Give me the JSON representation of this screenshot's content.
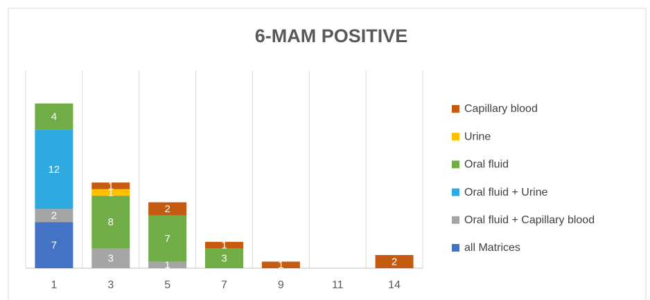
{
  "chart_data": {
    "type": "stacked_bar",
    "title": "6-MAM POSITIVE",
    "categories": [
      "1",
      "3",
      "5",
      "7",
      "9",
      "11",
      "14"
    ],
    "series": [
      {
        "name": "all Matrices",
        "color": "#4472c4",
        "values": [
          7,
          null,
          null,
          null,
          null,
          null,
          null
        ]
      },
      {
        "name": "Oral fluid + Capillary blood",
        "color": "#a5a5a5",
        "values": [
          2,
          3,
          1,
          null,
          null,
          null,
          null
        ]
      },
      {
        "name": "Oral fluid + Urine",
        "color": "#2eaae1",
        "values": [
          12,
          null,
          null,
          null,
          null,
          null,
          null
        ]
      },
      {
        "name": "Oral fluid",
        "color": "#70ad47",
        "values": [
          4,
          8,
          7,
          3,
          null,
          null,
          null
        ]
      },
      {
        "name": "Urine",
        "color": "#ffc000",
        "values": [
          null,
          1,
          null,
          null,
          null,
          null,
          null
        ]
      },
      {
        "name": "Capillary blood",
        "color": "#c55a11",
        "values": [
          null,
          1,
          2,
          1,
          1,
          null,
          2
        ]
      }
    ],
    "ylim": [
      0,
      30
    ],
    "legend": "right"
  }
}
